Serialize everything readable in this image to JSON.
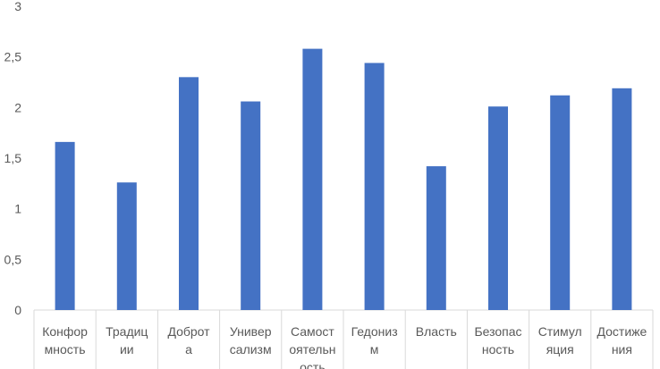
{
  "chart_data": {
    "type": "bar",
    "title": "",
    "xlabel": "",
    "ylabel": "",
    "ylim": [
      0,
      3
    ],
    "yticks": [
      0,
      0.5,
      1,
      1.5,
      2,
      2.5,
      3
    ],
    "ytick_labels": [
      "0",
      "0,5",
      "1",
      "1,5",
      "2",
      "2,5",
      "3"
    ],
    "grid": false,
    "bar_color": "#4472C4",
    "categories": [
      [
        "Конфор",
        "мность"
      ],
      [
        "Традиц",
        "ии"
      ],
      [
        "Доброт",
        "а"
      ],
      [
        "Универ",
        "сализм"
      ],
      [
        "Самост",
        "оятельн",
        "ость"
      ],
      [
        "Гедониз",
        "м"
      ],
      [
        "Власть"
      ],
      [
        "Безопас",
        "ность"
      ],
      [
        "Стимул",
        "яция"
      ],
      [
        "Достиже",
        "ния"
      ]
    ],
    "values": [
      1.66,
      1.26,
      2.3,
      2.06,
      2.58,
      2.44,
      1.42,
      2.01,
      2.12,
      2.19
    ]
  }
}
